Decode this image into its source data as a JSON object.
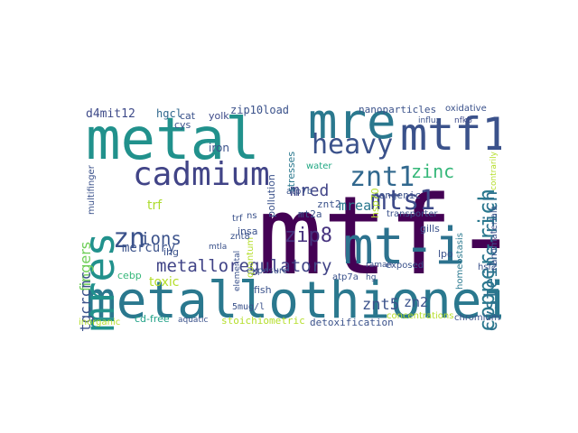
{
  "words": [
    {
      "text": "mtf-1",
      "color": "#440154"
    },
    {
      "text": "metallothionein",
      "color": "#2a788e"
    },
    {
      "text": "metal",
      "color": "#21918c"
    },
    {
      "text": "mre",
      "color": "#2a788e"
    },
    {
      "text": "mtf1",
      "color": "#3b528b"
    },
    {
      "text": "mt-i",
      "color": "#2c728e"
    },
    {
      "text": "mres",
      "color": "#21918c"
    },
    {
      "text": "cadmium",
      "color": "#414487"
    },
    {
      "text": "heavy",
      "color": "#3b528b"
    },
    {
      "text": "znt1",
      "color": "#31688e"
    },
    {
      "text": "mts1",
      "color": "#3e4a89"
    },
    {
      "text": "zn",
      "color": "#3b528b"
    },
    {
      "text": "copper-rich",
      "color": "#2a788e"
    },
    {
      "text": "cysteine-rich",
      "color": "#2c728e"
    },
    {
      "text": "metalloregulatory",
      "color": "#414487"
    },
    {
      "text": "zip8",
      "color": "#46327e"
    },
    {
      "text": "ions",
      "color": "#3b528b"
    },
    {
      "text": "zinc",
      "color": "#35b779"
    },
    {
      "text": "mred",
      "color": "#414487"
    },
    {
      "text": "mrea",
      "color": "#2a788e"
    },
    {
      "text": "znt5",
      "color": "#3b528b"
    },
    {
      "text": "zn2",
      "color": "#3b528b"
    },
    {
      "text": "d4mit12",
      "color": "#3e4a89"
    },
    {
      "text": "fingers",
      "color": "#6ece58"
    },
    {
      "text": "tgcrcnc",
      "color": "#3b528b"
    },
    {
      "text": "mercury",
      "color": "#3b528b"
    },
    {
      "text": "toxic",
      "color": "#b5de2b"
    },
    {
      "text": "trf",
      "color": "#addc30"
    },
    {
      "text": "hgcl",
      "color": "#31688e"
    },
    {
      "text": "cat",
      "color": "#3b528b"
    },
    {
      "text": "yolk",
      "color": "#3e4a89"
    },
    {
      "text": "zip10load",
      "color": "#3b528b"
    },
    {
      "text": "nanoparticles",
      "color": "#3b528b"
    },
    {
      "text": "oxidative",
      "color": "#3b528b"
    },
    {
      "text": "influx",
      "color": "#3b528b"
    },
    {
      "text": "nfkb",
      "color": "#3e4a89"
    },
    {
      "text": "iron",
      "color": "#3b528b"
    },
    {
      "text": "cys",
      "color": "#3b528b"
    },
    {
      "text": "ihg",
      "color": "#3b528b"
    },
    {
      "text": "cebp",
      "color": "#35b779"
    },
    {
      "text": "cd-free",
      "color": "#1fa187"
    },
    {
      "text": "aquatic",
      "color": "#3b528b"
    },
    {
      "text": "stoichiometric",
      "color": "#b5de2b"
    },
    {
      "text": "detoxification",
      "color": "#3b528b"
    },
    {
      "text": "concentrations",
      "color": "#b5de2b"
    },
    {
      "text": "chromium",
      "color": "#3b528b"
    },
    {
      "text": "inorganic",
      "color": "#b5de2b"
    },
    {
      "text": "multifinger",
      "color": "#3b528b"
    },
    {
      "text": "pollution",
      "color": "#3b528b"
    },
    {
      "text": "stresses",
      "color": "#2a788e"
    },
    {
      "text": "water",
      "color": "#22a884"
    },
    {
      "text": "trf",
      "color": "#3b528b"
    },
    {
      "text": "atp7b",
      "color": "#3b528b"
    },
    {
      "text": "congenic",
      "color": "#3b528b"
    },
    {
      "text": "transporter",
      "color": "#3b528b"
    },
    {
      "text": "gills",
      "color": "#3b528b"
    },
    {
      "text": "lpo",
      "color": "#3b528b"
    },
    {
      "text": "exposed",
      "color": "#3b528b"
    },
    {
      "text": "hsf2",
      "color": "#3b528b"
    },
    {
      "text": "atp7a",
      "color": "#3b528b"
    },
    {
      "text": "exposure",
      "color": "#3b528b"
    },
    {
      "text": "fish",
      "color": "#3b528b"
    },
    {
      "text": "insa",
      "color": "#3b528b"
    },
    {
      "text": "mt2a",
      "color": "#3b528b"
    },
    {
      "text": "znt2",
      "color": "#3b528b"
    },
    {
      "text": "5mug/l",
      "color": "#3b528b"
    },
    {
      "text": "quantum",
      "color": "#b5de2b"
    },
    {
      "text": "elemental",
      "color": "#3b528b"
    },
    {
      "text": "nanomaterials",
      "color": "#3b528b"
    },
    {
      "text": "contrarily",
      "color": "#b5de2b"
    },
    {
      "text": "homeostasis",
      "color": "#2a788e"
    },
    {
      "text": "hsp70",
      "color": "#b5de2b"
    },
    {
      "text": "mtla",
      "color": "#3b528b"
    },
    {
      "text": "raman",
      "color": "#3b528b"
    },
    {
      "text": "hg",
      "color": "#3b528b"
    },
    {
      "text": "znt8",
      "color": "#3b528b"
    },
    {
      "text": "ns",
      "color": "#3b528b"
    }
  ]
}
